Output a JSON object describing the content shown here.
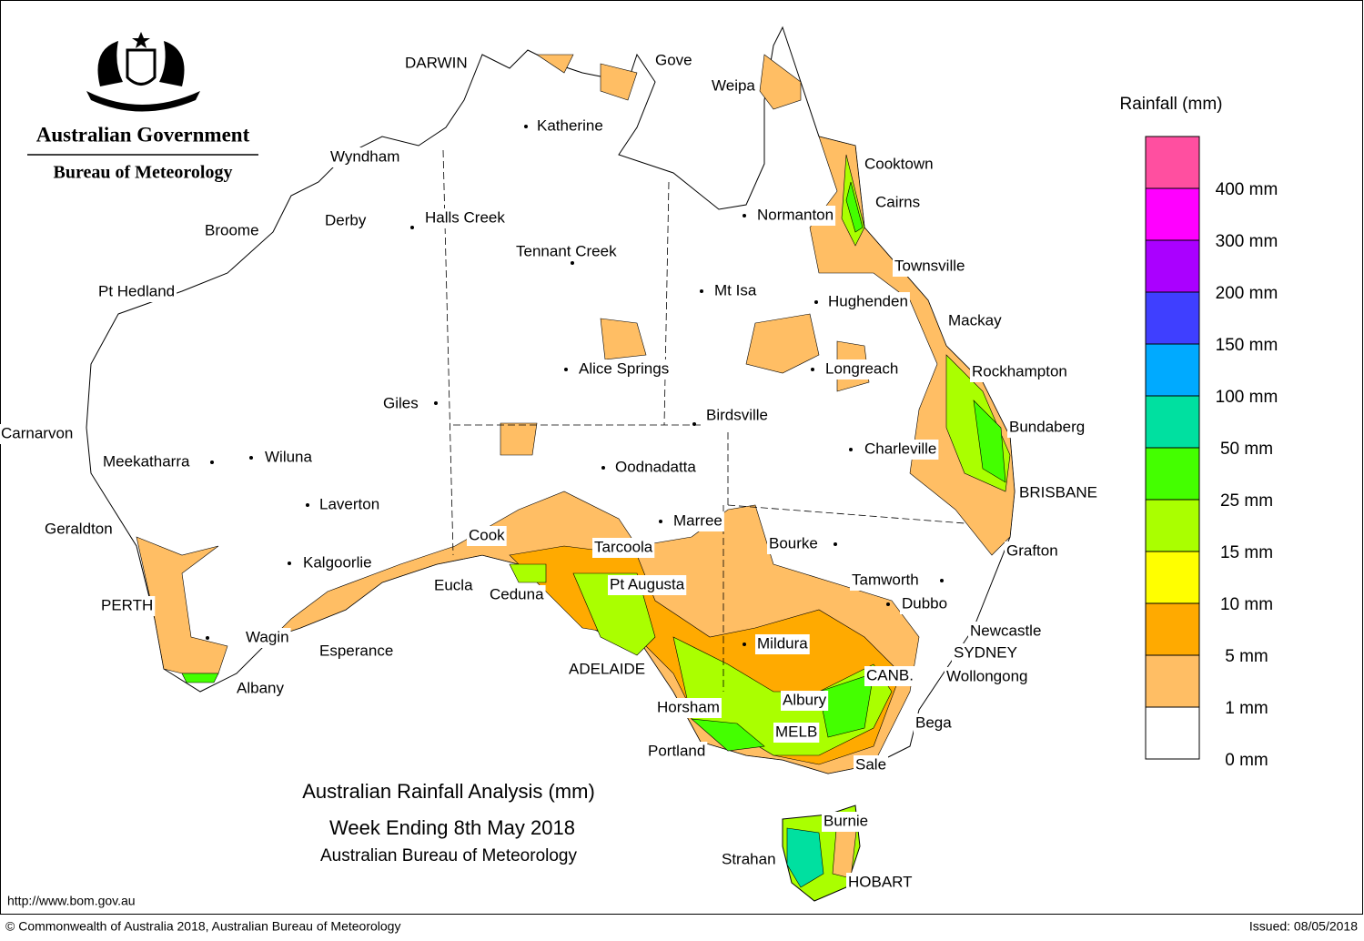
{
  "header": {
    "government": "Australian Government",
    "bureau": "Bureau of Meteorology"
  },
  "legend": {
    "title": "Rainfall (mm)",
    "colors": [
      "#ff4fa0",
      "#ff00ff",
      "#aa00ff",
      "#3f3fff",
      "#00aaff",
      "#00e0a0",
      "#44ff00",
      "#aaff00",
      "#ffff00",
      "#ffaa00",
      "#ffbe64",
      "#ffffff"
    ],
    "labels": [
      "400 mm",
      "300 mm",
      "200 mm",
      "150 mm",
      "100 mm",
      "50 mm",
      "25 mm",
      "15 mm",
      "10 mm",
      "5 mm",
      "1 mm",
      "0 mm"
    ]
  },
  "places": [
    "DARWIN",
    "Gove",
    "Weipa",
    "Katherine",
    "Wyndham",
    "Cooktown",
    "Cairns",
    "Normanton",
    "Broome",
    "Derby",
    "Halls Creek",
    "Tennant Creek",
    "Townsville",
    "Pt Hedland",
    "Mt Isa",
    "Hughenden",
    "Mackay",
    "Longreach",
    "Alice Springs",
    "Rockhampton",
    "Giles",
    "Birdsville",
    "Bundaberg",
    "Carnarvon",
    "Charleville",
    "Meekatharra",
    "Wiluna",
    "Oodnadatta",
    "BRISBANE",
    "Laverton",
    "Marree",
    "Geraldton",
    "Cook",
    "Bourke",
    "Grafton",
    "Tarcoola",
    "Kalgoorlie",
    "Tamworth",
    "Eucla",
    "Pt Augusta",
    "Ceduna",
    "Dubbo",
    "PERTH",
    "Newcastle",
    "Wagin",
    "Mildura",
    "Esperance",
    "SYDNEY",
    "ADELAIDE",
    "CANB.",
    "Wollongong",
    "Albany",
    "Albury",
    "Horsham",
    "Bega",
    "MELB",
    "Portland",
    "Sale",
    "Burnie",
    "Strahan",
    "HOBART"
  ],
  "caption": {
    "title": "Australian Rainfall Analysis (mm)",
    "period": "Week Ending 8th May 2018",
    "source": "Australian Bureau of Meteorology"
  },
  "footer": {
    "url": "http://www.bom.gov.au",
    "copyright": "© Commonwealth of Australia 2018, Australian Bureau of Meteorology",
    "issued": "Issued: 08/05/2018"
  }
}
